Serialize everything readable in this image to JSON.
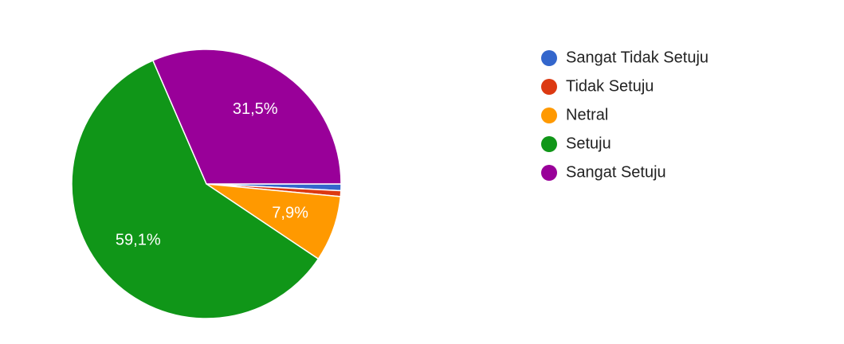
{
  "chart_data": {
    "type": "pie",
    "categories": [
      "Sangat Tidak Setuju",
      "Tidak Setuju",
      "Netral",
      "Setuju",
      "Sangat Setuju"
    ],
    "values": [
      0.8,
      0.7,
      7.9,
      59.1,
      31.5
    ],
    "value_labels": [
      null,
      null,
      "7,9%",
      "59,1%",
      "31,5%"
    ],
    "colors": [
      "#3366cc",
      "#dc3912",
      "#ff9900",
      "#109618",
      "#990099"
    ],
    "legend": "right"
  }
}
